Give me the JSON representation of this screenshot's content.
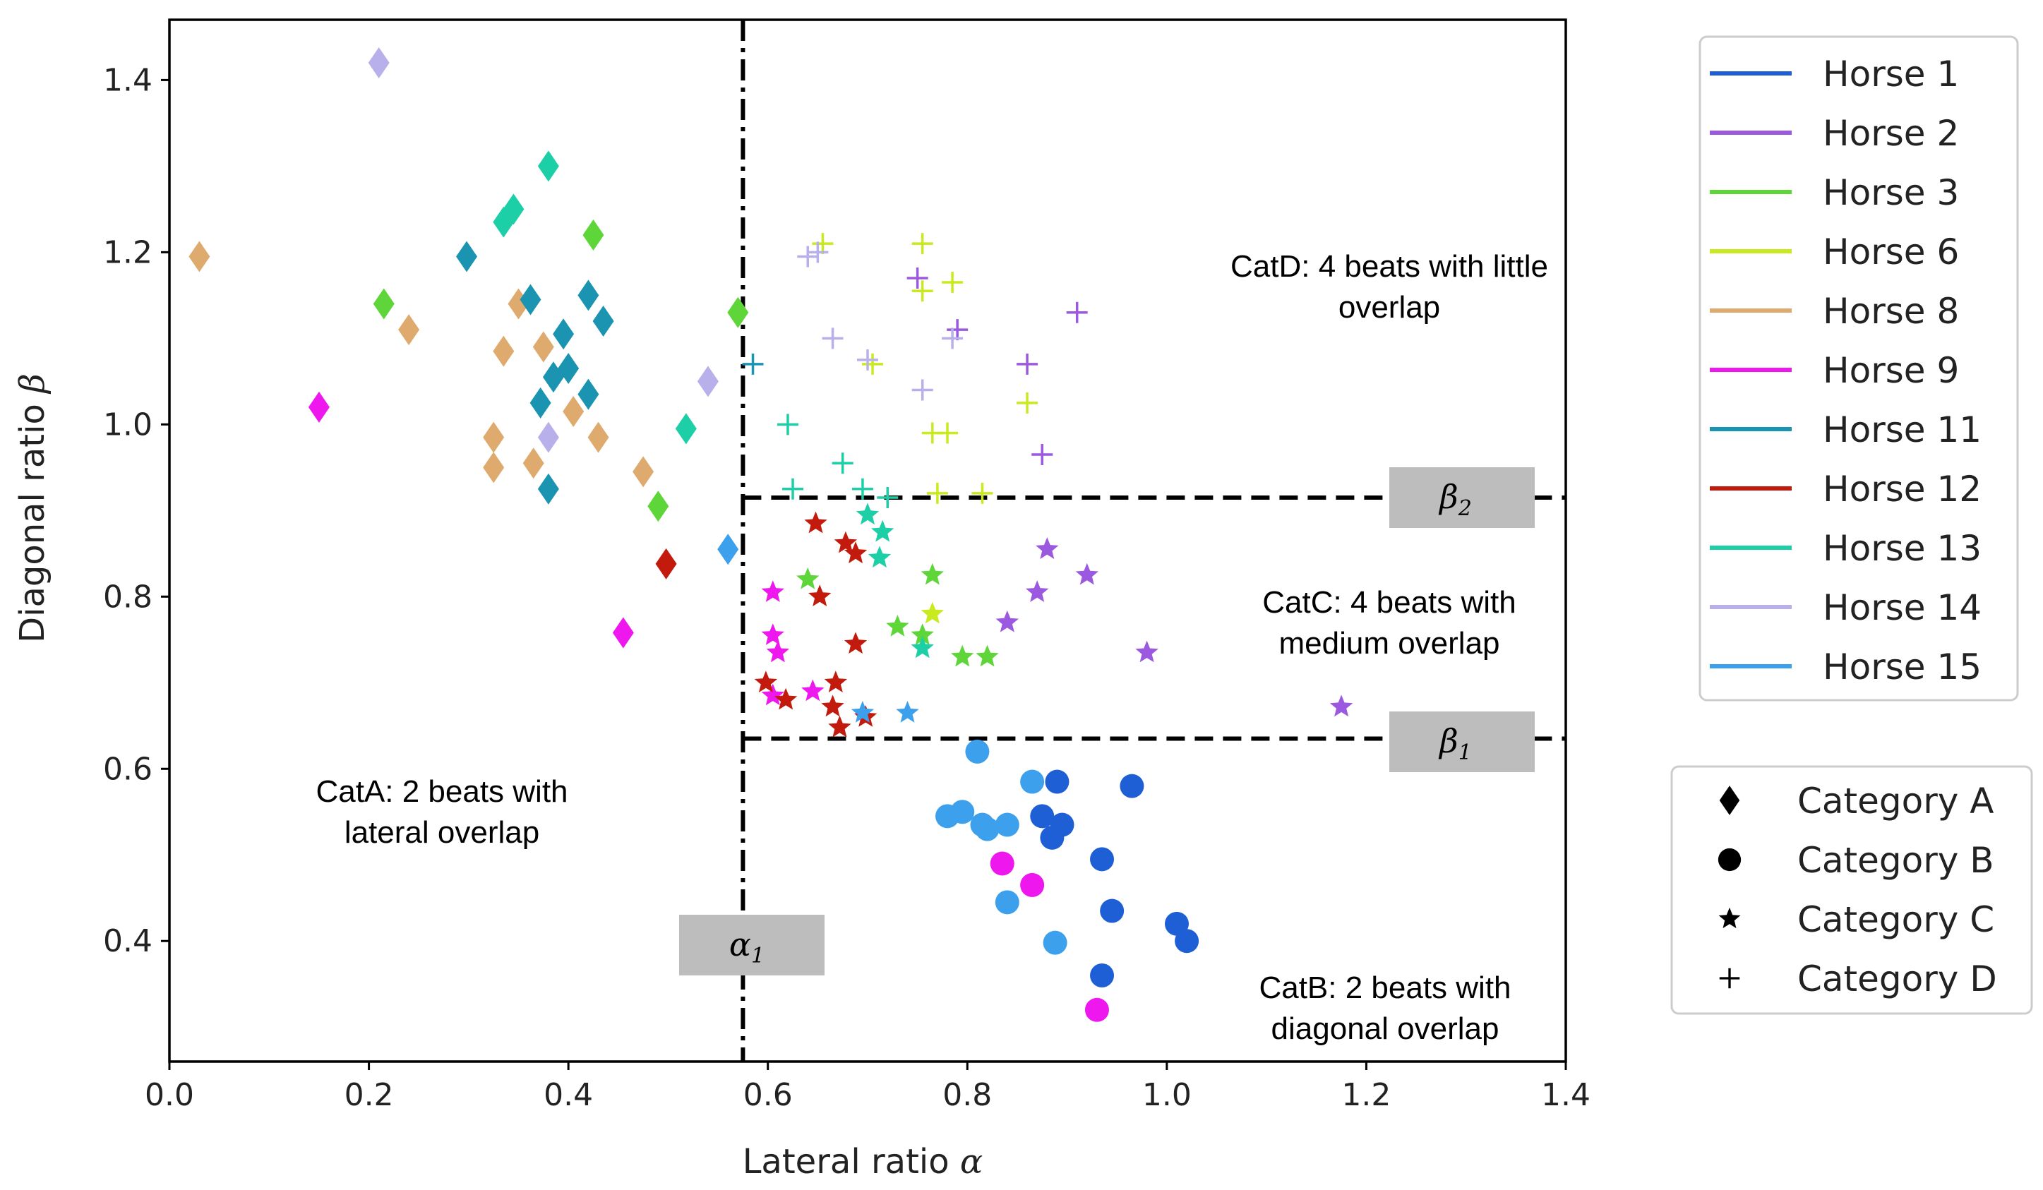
{
  "chart_data": {
    "type": "scatter",
    "xlabel": "Lateral ratio",
    "xlabel_symbol": "α",
    "ylabel": "Diagonal ratio",
    "ylabel_symbol": "β",
    "xlim": [
      0.0,
      1.4
    ],
    "ylim": [
      0.26,
      1.47
    ],
    "x_ticks": [
      "0.0",
      "0.2",
      "0.4",
      "0.6",
      "0.8",
      "1.0",
      "1.2",
      "1.4"
    ],
    "y_ticks": [
      "0.4",
      "0.6",
      "0.8",
      "1.0",
      "1.2",
      "1.4"
    ],
    "thresholds": {
      "alpha1": 0.575,
      "beta1": 0.635,
      "beta2": 0.915
    },
    "threshold_labels": {
      "alpha1": "α",
      "alpha1_sub": "1",
      "beta1": "β",
      "beta1_sub": "1",
      "beta2": "β",
      "beta2_sub": "2"
    },
    "region_annotations": {
      "catA": [
        "CatA: 2 beats with",
        "lateral overlap"
      ],
      "catB": [
        "CatB: 2 beats with",
        "diagonal overlap"
      ],
      "catC": [
        "CatC: 4 beats with",
        "medium overlap"
      ],
      "catD": [
        "CatD: 4 beats with little",
        "overlap"
      ]
    },
    "legend_horses": [
      {
        "name": "Horse 1",
        "color": "#1f5fd6"
      },
      {
        "name": "Horse 2",
        "color": "#9b59e0"
      },
      {
        "name": "Horse 3",
        "color": "#5ed63a"
      },
      {
        "name": "Horse 6",
        "color": "#c8ea1e"
      },
      {
        "name": "Horse 8",
        "color": "#deaa6e"
      },
      {
        "name": "Horse 9",
        "color": "#ee18ee"
      },
      {
        "name": "Horse 11",
        "color": "#1a94b0"
      },
      {
        "name": "Horse 12",
        "color": "#c21a0c"
      },
      {
        "name": "Horse 13",
        "color": "#1ccfa6"
      },
      {
        "name": "Horse 14",
        "color": "#b8b0ea"
      },
      {
        "name": "Horse 15",
        "color": "#3da0ec"
      }
    ],
    "legend_categories": [
      {
        "name": "Category A",
        "marker": "diamond"
      },
      {
        "name": "Category B",
        "marker": "circle"
      },
      {
        "name": "Category C",
        "marker": "star"
      },
      {
        "name": "Category D",
        "marker": "plus"
      }
    ],
    "series": [
      {
        "name": "Horse 1",
        "color": "#1f5fd6",
        "points": [
          {
            "c": "B",
            "x": 0.89,
            "y": 0.585
          },
          {
            "c": "B",
            "x": 0.875,
            "y": 0.545
          },
          {
            "c": "B",
            "x": 0.895,
            "y": 0.535
          },
          {
            "c": "B",
            "x": 0.885,
            "y": 0.52
          },
          {
            "c": "B",
            "x": 0.935,
            "y": 0.495
          },
          {
            "c": "B",
            "x": 0.945,
            "y": 0.435
          },
          {
            "c": "B",
            "x": 0.965,
            "y": 0.58
          },
          {
            "c": "B",
            "x": 1.01,
            "y": 0.42
          },
          {
            "c": "B",
            "x": 1.02,
            "y": 0.4
          },
          {
            "c": "B",
            "x": 0.935,
            "y": 0.36
          }
        ]
      },
      {
        "name": "Horse 2",
        "color": "#9b59e0",
        "points": [
          {
            "c": "C",
            "x": 0.88,
            "y": 0.855
          },
          {
            "c": "C",
            "x": 0.92,
            "y": 0.825
          },
          {
            "c": "C",
            "x": 0.87,
            "y": 0.805
          },
          {
            "c": "C",
            "x": 0.84,
            "y": 0.77
          },
          {
            "c": "C",
            "x": 0.98,
            "y": 0.735
          },
          {
            "c": "C",
            "x": 1.175,
            "y": 0.672
          },
          {
            "c": "D",
            "x": 0.75,
            "y": 1.17
          },
          {
            "c": "D",
            "x": 0.79,
            "y": 1.11
          },
          {
            "c": "D",
            "x": 0.91,
            "y": 1.13
          },
          {
            "c": "D",
            "x": 0.86,
            "y": 1.07
          },
          {
            "c": "D",
            "x": 0.875,
            "y": 0.965
          }
        ]
      },
      {
        "name": "Horse 3",
        "color": "#5ed63a",
        "points": [
          {
            "c": "A",
            "x": 0.215,
            "y": 1.14
          },
          {
            "c": "A",
            "x": 0.425,
            "y": 1.22
          },
          {
            "c": "A",
            "x": 0.57,
            "y": 1.13
          },
          {
            "c": "A",
            "x": 0.49,
            "y": 0.905
          },
          {
            "c": "C",
            "x": 0.64,
            "y": 0.82
          },
          {
            "c": "C",
            "x": 0.765,
            "y": 0.825
          },
          {
            "c": "C",
            "x": 0.73,
            "y": 0.765
          },
          {
            "c": "C",
            "x": 0.755,
            "y": 0.755
          },
          {
            "c": "C",
            "x": 0.795,
            "y": 0.73
          },
          {
            "c": "C",
            "x": 0.82,
            "y": 0.73
          }
        ]
      },
      {
        "name": "Horse 6",
        "color": "#c8ea1e",
        "points": [
          {
            "c": "D",
            "x": 0.655,
            "y": 1.21
          },
          {
            "c": "D",
            "x": 0.755,
            "y": 1.21
          },
          {
            "c": "D",
            "x": 0.785,
            "y": 1.165
          },
          {
            "c": "D",
            "x": 0.755,
            "y": 1.155
          },
          {
            "c": "D",
            "x": 0.705,
            "y": 1.07
          },
          {
            "c": "D",
            "x": 0.86,
            "y": 1.025
          },
          {
            "c": "D",
            "x": 0.765,
            "y": 0.99
          },
          {
            "c": "D",
            "x": 0.78,
            "y": 0.99
          },
          {
            "c": "D",
            "x": 0.77,
            "y": 0.92
          },
          {
            "c": "D",
            "x": 0.815,
            "y": 0.92
          },
          {
            "c": "C",
            "x": 0.765,
            "y": 0.78
          }
        ]
      },
      {
        "name": "Horse 8",
        "color": "#deaa6e",
        "points": [
          {
            "c": "A",
            "x": 0.03,
            "y": 1.195
          },
          {
            "c": "A",
            "x": 0.24,
            "y": 1.11
          },
          {
            "c": "A",
            "x": 0.35,
            "y": 1.14
          },
          {
            "c": "A",
            "x": 0.335,
            "y": 1.085
          },
          {
            "c": "A",
            "x": 0.375,
            "y": 1.09
          },
          {
            "c": "A",
            "x": 0.325,
            "y": 0.985
          },
          {
            "c": "A",
            "x": 0.325,
            "y": 0.95
          },
          {
            "c": "A",
            "x": 0.365,
            "y": 0.955
          },
          {
            "c": "A",
            "x": 0.405,
            "y": 1.015
          },
          {
            "c": "A",
            "x": 0.43,
            "y": 0.985
          },
          {
            "c": "A",
            "x": 0.475,
            "y": 0.945
          }
        ]
      },
      {
        "name": "Horse 9",
        "color": "#ee18ee",
        "points": [
          {
            "c": "A",
            "x": 0.15,
            "y": 1.02
          },
          {
            "c": "A",
            "x": 0.455,
            "y": 0.758
          },
          {
            "c": "C",
            "x": 0.605,
            "y": 0.805
          },
          {
            "c": "C",
            "x": 0.605,
            "y": 0.755
          },
          {
            "c": "C",
            "x": 0.61,
            "y": 0.735
          },
          {
            "c": "C",
            "x": 0.605,
            "y": 0.685
          },
          {
            "c": "C",
            "x": 0.645,
            "y": 0.69
          },
          {
            "c": "B",
            "x": 0.835,
            "y": 0.49
          },
          {
            "c": "B",
            "x": 0.865,
            "y": 0.465
          },
          {
            "c": "B",
            "x": 0.93,
            "y": 0.32
          }
        ]
      },
      {
        "name": "Horse 11",
        "color": "#1a94b0",
        "points": [
          {
            "c": "A",
            "x": 0.298,
            "y": 1.195
          },
          {
            "c": "A",
            "x": 0.362,
            "y": 1.145
          },
          {
            "c": "A",
            "x": 0.395,
            "y": 1.105
          },
          {
            "c": "A",
            "x": 0.42,
            "y": 1.15
          },
          {
            "c": "A",
            "x": 0.435,
            "y": 1.12
          },
          {
            "c": "A",
            "x": 0.385,
            "y": 1.055
          },
          {
            "c": "A",
            "x": 0.4,
            "y": 1.065
          },
          {
            "c": "A",
            "x": 0.42,
            "y": 1.035
          },
          {
            "c": "A",
            "x": 0.372,
            "y": 1.025
          },
          {
            "c": "A",
            "x": 0.38,
            "y": 0.925
          },
          {
            "c": "D",
            "x": 0.585,
            "y": 1.07
          }
        ]
      },
      {
        "name": "Horse 12",
        "color": "#c21a0c",
        "points": [
          {
            "c": "A",
            "x": 0.498,
            "y": 0.838
          },
          {
            "c": "C",
            "x": 0.648,
            "y": 0.885
          },
          {
            "c": "C",
            "x": 0.678,
            "y": 0.862
          },
          {
            "c": "C",
            "x": 0.688,
            "y": 0.85
          },
          {
            "c": "C",
            "x": 0.652,
            "y": 0.8
          },
          {
            "c": "C",
            "x": 0.688,
            "y": 0.745
          },
          {
            "c": "C",
            "x": 0.598,
            "y": 0.7
          },
          {
            "c": "C",
            "x": 0.668,
            "y": 0.7
          },
          {
            "c": "C",
            "x": 0.618,
            "y": 0.68
          },
          {
            "c": "C",
            "x": 0.665,
            "y": 0.672
          },
          {
            "c": "C",
            "x": 0.672,
            "y": 0.648
          },
          {
            "c": "C",
            "x": 0.698,
            "y": 0.66
          }
        ]
      },
      {
        "name": "Horse 13",
        "color": "#1ccfa6",
        "points": [
          {
            "c": "A",
            "x": 0.345,
            "y": 1.25
          },
          {
            "c": "A",
            "x": 0.335,
            "y": 1.235
          },
          {
            "c": "A",
            "x": 0.38,
            "y": 1.3
          },
          {
            "c": "A",
            "x": 0.518,
            "y": 0.995
          },
          {
            "c": "D",
            "x": 0.62,
            "y": 1.0
          },
          {
            "c": "D",
            "x": 0.675,
            "y": 0.955
          },
          {
            "c": "D",
            "x": 0.625,
            "y": 0.925
          },
          {
            "c": "D",
            "x": 0.695,
            "y": 0.925
          },
          {
            "c": "D",
            "x": 0.72,
            "y": 0.915
          },
          {
            "c": "C",
            "x": 0.7,
            "y": 0.895
          },
          {
            "c": "C",
            "x": 0.715,
            "y": 0.875
          },
          {
            "c": "C",
            "x": 0.712,
            "y": 0.845
          },
          {
            "c": "C",
            "x": 0.755,
            "y": 0.74
          }
        ]
      },
      {
        "name": "Horse 14",
        "color": "#b8b0ea",
        "points": [
          {
            "c": "A",
            "x": 0.21,
            "y": 1.42
          },
          {
            "c": "A",
            "x": 0.54,
            "y": 1.05
          },
          {
            "c": "A",
            "x": 0.38,
            "y": 0.985
          },
          {
            "c": "D",
            "x": 0.64,
            "y": 1.195
          },
          {
            "c": "D",
            "x": 0.65,
            "y": 1.2
          },
          {
            "c": "D",
            "x": 0.665,
            "y": 1.1
          },
          {
            "c": "D",
            "x": 0.7,
            "y": 1.075
          },
          {
            "c": "D",
            "x": 0.785,
            "y": 1.1
          },
          {
            "c": "D",
            "x": 0.755,
            "y": 1.04
          }
        ]
      },
      {
        "name": "Horse 15",
        "color": "#3da0ec",
        "points": [
          {
            "c": "A",
            "x": 0.56,
            "y": 0.855
          },
          {
            "c": "C",
            "x": 0.695,
            "y": 0.665
          },
          {
            "c": "C",
            "x": 0.74,
            "y": 0.665
          },
          {
            "c": "B",
            "x": 0.81,
            "y": 0.62
          },
          {
            "c": "B",
            "x": 0.865,
            "y": 0.585
          },
          {
            "c": "B",
            "x": 0.78,
            "y": 0.545
          },
          {
            "c": "B",
            "x": 0.795,
            "y": 0.55
          },
          {
            "c": "B",
            "x": 0.815,
            "y": 0.535
          },
          {
            "c": "B",
            "x": 0.84,
            "y": 0.535
          },
          {
            "c": "B",
            "x": 0.82,
            "y": 0.53
          },
          {
            "c": "B",
            "x": 0.84,
            "y": 0.445
          },
          {
            "c": "B",
            "x": 0.888,
            "y": 0.398
          }
        ]
      }
    ]
  }
}
